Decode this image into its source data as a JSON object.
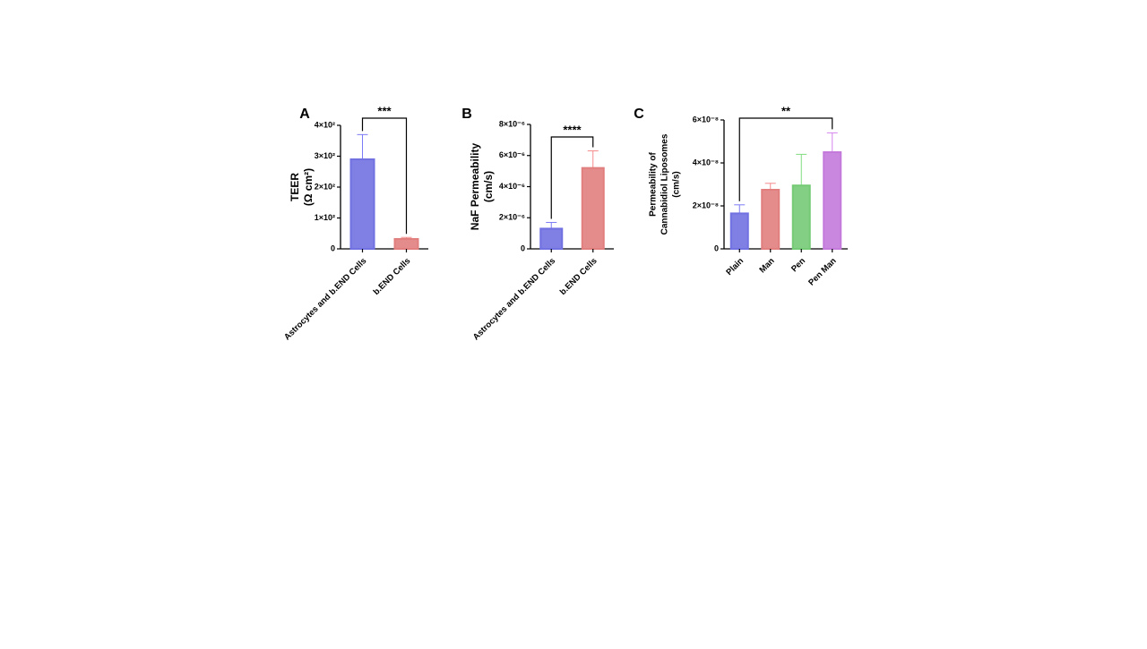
{
  "chart_data": [
    {
      "type": "bar",
      "panel": "A",
      "ylabel": [
        "TEER",
        "(Ω cm²)"
      ],
      "categories": [
        "Astrocytes and b.END Cells",
        "b.END Cells"
      ],
      "values": [
        290,
        32
      ],
      "errors": [
        80,
        5
      ],
      "colors": [
        "#7b7bf5",
        "#f58a8a"
      ],
      "ylim": [
        0,
        400
      ],
      "yticks": [
        0,
        {
          "value": 100,
          "label": "1×10²"
        },
        {
          "value": 200,
          "label": "2×10²"
        },
        {
          "value": 300,
          "label": "3×10²"
        },
        {
          "value": 400,
          "label": "4×10²"
        }
      ],
      "annotation": "***"
    },
    {
      "type": "bar",
      "panel": "B",
      "ylabel": [
        "NaF Permeability",
        "(cm/s)"
      ],
      "categories": [
        "Astrocytes and b.END Cells",
        "b.END Cells"
      ],
      "values": [
        1.3e-06,
        5.2e-06
      ],
      "errors": [
        4e-07,
        1.1e-06
      ],
      "colors": [
        "#7b7bf5",
        "#f58a8a"
      ],
      "ylim": [
        0,
        8e-06
      ],
      "yticks": [
        0,
        {
          "value": 2e-06,
          "label": "2×10⁻⁶"
        },
        {
          "value": 4e-06,
          "label": "4×10⁻⁶"
        },
        {
          "value": 6e-06,
          "label": "6×10⁻⁶"
        },
        {
          "value": 8e-06,
          "label": "8×10⁻⁶"
        }
      ],
      "annotation": "****"
    },
    {
      "type": "bar",
      "panel": "C",
      "ylabel": [
        "Permeability of",
        "Cannabidiol Liposomes",
        "(cm/s)"
      ],
      "categories": [
        "Plain",
        "Man",
        "Pen",
        "Pen Man"
      ],
      "values": [
        1.65e-08,
        2.75e-08,
        2.95e-08,
        4.5e-08
      ],
      "errors": [
        4e-09,
        3e-09,
        1.45e-08,
        9e-09
      ],
      "colors": [
        "#7b7bf5",
        "#f58a8a",
        "#7fdc7f",
        "#d585ee"
      ],
      "ylim": [
        0,
        6e-08
      ],
      "yticks": [
        0,
        {
          "value": 2e-08,
          "label": "2×10⁻⁸"
        },
        {
          "value": 4e-08,
          "label": "4×10⁻⁸"
        },
        {
          "value": 6e-08,
          "label": "6×10⁻⁸"
        }
      ],
      "annotation": "**"
    }
  ]
}
